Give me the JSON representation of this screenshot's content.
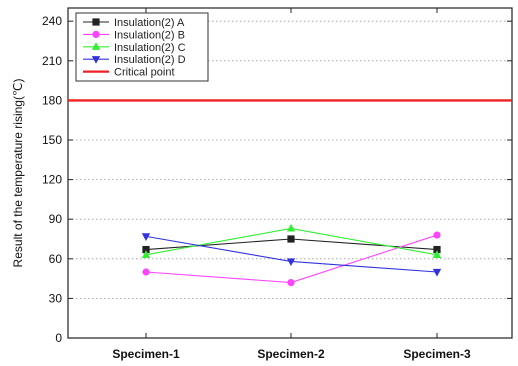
{
  "chart_data": {
    "type": "line",
    "title": "",
    "xlabel": "",
    "ylabel": "Result of the temperature rising(℃)",
    "categories": [
      "Specimen-1",
      "Specimen-2",
      "Specimen-3"
    ],
    "ylim": [
      0,
      250
    ],
    "yticks": [
      0,
      30,
      60,
      90,
      120,
      150,
      180,
      210,
      240
    ],
    "grid": "dotted horizontal",
    "legend_position": "top-left",
    "series": [
      {
        "name": "Insulation(2) A",
        "values": [
          67,
          75,
          67
        ],
        "color": "#222222",
        "marker": "square"
      },
      {
        "name": "Insulation(2) B",
        "values": [
          50,
          42,
          78
        ],
        "color": "#ff44ff",
        "marker": "circle"
      },
      {
        "name": "Insulation(2) C",
        "values": [
          63,
          83,
          63
        ],
        "color": "#33ee33",
        "marker": "triangle-up"
      },
      {
        "name": "Insulation(2) D",
        "values": [
          77,
          58,
          50
        ],
        "color": "#3333dd",
        "marker": "triangle-down"
      }
    ],
    "reference_lines": [
      {
        "name": "Critical point",
        "value": 180,
        "color": "#ee2222"
      }
    ]
  }
}
